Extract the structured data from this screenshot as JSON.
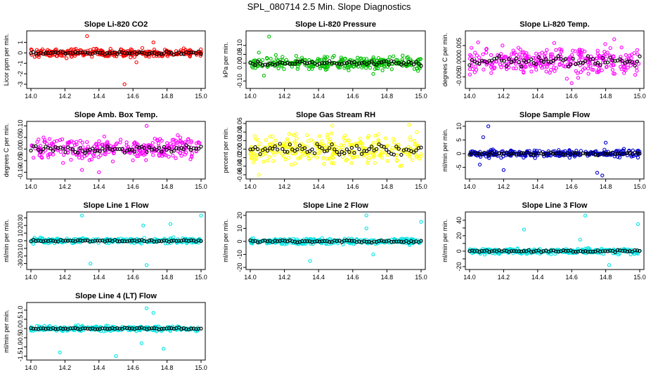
{
  "title": "SPL_080714  2.5 Min. Slope Diagnostics",
  "chart_data": [
    {
      "type": "scatter",
      "title": "Slope Li-820 CO2",
      "ylabel": "Licor ppm per min.",
      "color": "#ff0000",
      "xlim": [
        14.0,
        15.0
      ],
      "ylim": [
        -3.2,
        1.9
      ],
      "xticks": [
        14.0,
        14.2,
        14.4,
        14.6,
        14.8,
        15.0
      ],
      "yticks": [
        -3,
        -2,
        -1,
        0,
        1
      ],
      "ytick_labels": [
        "-3",
        "-2",
        "-1",
        "0",
        "1"
      ],
      "spread": 0.35,
      "outliers": [
        [
          14.33,
          1.6
        ],
        [
          14.55,
          -3.0
        ],
        [
          14.62,
          -0.9
        ],
        [
          14.72,
          1.0
        ]
      ]
    },
    {
      "type": "scatter",
      "title": "Slope Li-820 Pressure",
      "ylabel": "kPa per min.",
      "color": "#00c000",
      "xlim": [
        14.0,
        15.0
      ],
      "ylim": [
        -0.13,
        0.17
      ],
      "xticks": [
        14.0,
        14.2,
        14.4,
        14.6,
        14.8,
        15.0
      ],
      "yticks": [
        -0.1,
        0.0,
        0.05,
        0.1
      ],
      "ytick_labels": [
        "-0.10",
        "0.00",
        "0.05",
        "0.10"
      ],
      "spread": 0.03,
      "outliers": [
        [
          14.11,
          0.15
        ],
        [
          14.08,
          -0.07
        ],
        [
          14.72,
          -0.06
        ],
        [
          14.05,
          0.06
        ]
      ]
    },
    {
      "type": "scatter",
      "title": "Slope Li-820 Temp.",
      "ylabel": "degrees C per min.",
      "color": "#ff00ff",
      "xlim": [
        14.0,
        15.0
      ],
      "ylim": [
        -0.008,
        0.009
      ],
      "xticks": [
        14.0,
        14.2,
        14.4,
        14.6,
        14.8,
        15.0
      ],
      "yticks": [
        -0.005,
        0.0,
        0.005
      ],
      "ytick_labels": [
        "-0.005",
        "0.000",
        "0.005"
      ],
      "spread": 0.004,
      "outliers": [
        [
          14.05,
          0.006
        ],
        [
          14.6,
          -0.007
        ],
        [
          14.85,
          0.007
        ]
      ]
    },
    {
      "type": "scatter",
      "title": "Slope Amb. Box Temp.",
      "ylabel": "degrees C per min.",
      "color": "#ff00ff",
      "xlim": [
        14.0,
        15.0
      ],
      "ylim": [
        -0.12,
        0.11
      ],
      "xticks": [
        14.0,
        14.2,
        14.4,
        14.6,
        14.8,
        15.0
      ],
      "yticks": [
        -0.1,
        -0.05,
        0.0,
        0.05,
        0.1
      ],
      "ytick_labels": [
        "-0.10",
        "-0.05",
        "0.00",
        "0.05",
        "0.10"
      ],
      "spread": 0.04,
      "outliers": [
        [
          14.4,
          -0.1
        ],
        [
          14.68,
          0.1
        ],
        [
          14.3,
          -0.09
        ]
      ]
    },
    {
      "type": "scatter",
      "title": "Slope Gas Stream RH",
      "ylabel": "percent per min.",
      "color": "#ffff00",
      "xlim": [
        14.0,
        15.0
      ],
      "ylim": [
        -0.065,
        0.06
      ],
      "xticks": [
        14.0,
        14.2,
        14.4,
        14.6,
        14.8,
        15.0
      ],
      "yticks": [
        -0.06,
        -0.04,
        -0.02,
        0.0,
        0.02,
        0.04,
        0.06
      ],
      "ytick_labels": [
        "-0.06",
        "-0.04",
        "-0.02",
        "0.00",
        "0.02",
        "0.04",
        "0.06"
      ],
      "spread": 0.03,
      "outliers": [
        [
          14.48,
          0.055
        ],
        [
          14.93,
          0.057
        ],
        [
          14.05,
          -0.06
        ]
      ]
    },
    {
      "type": "scatter",
      "title": "Slope Sample Flow",
      "ylabel": "ml/min per min.",
      "color": "#0000cc",
      "xlim": [
        14.0,
        15.0
      ],
      "ylim": [
        -8.5,
        11
      ],
      "xticks": [
        14.0,
        14.2,
        14.4,
        14.6,
        14.8,
        15.0
      ],
      "yticks": [
        -5,
        0,
        5,
        10
      ],
      "ytick_labels": [
        "-5",
        "0",
        "5",
        "10"
      ],
      "spread": 1.2,
      "outliers": [
        [
          14.11,
          10
        ],
        [
          14.08,
          6
        ],
        [
          14.2,
          -6
        ],
        [
          14.75,
          -7
        ],
        [
          14.78,
          -8
        ],
        [
          14.06,
          -4
        ],
        [
          14.8,
          4
        ]
      ]
    },
    {
      "type": "scatter",
      "title": "Slope Line 1 Flow",
      "ylabel": "ml/min per min.",
      "color": "#00e5e5",
      "xlim": [
        14.0,
        15.0
      ],
      "ylim": [
        -35,
        35
      ],
      "xticks": [
        14.0,
        14.2,
        14.4,
        14.6,
        14.8,
        15.0
      ],
      "yticks": [
        -30,
        -20,
        -10,
        0,
        10,
        20,
        30
      ],
      "ytick_labels": [
        "-30",
        "-20",
        "-10",
        "0",
        "10",
        "20",
        "30"
      ],
      "spread": 3,
      "outliers": [
        [
          14.3,
          33
        ],
        [
          14.35,
          -30
        ],
        [
          14.68,
          -32
        ],
        [
          14.82,
          22
        ],
        [
          15.0,
          33
        ],
        [
          14.66,
          20
        ]
      ]
    },
    {
      "type": "scatter",
      "title": "Slope Line 2 Flow",
      "ylabel": "ml/min per min.",
      "color": "#00e5e5",
      "xlim": [
        14.0,
        15.0
      ],
      "ylim": [
        -20,
        21
      ],
      "xticks": [
        14.0,
        14.2,
        14.4,
        14.6,
        14.8,
        15.0
      ],
      "yticks": [
        -20,
        -10,
        0,
        10,
        20
      ],
      "ytick_labels": [
        "-20",
        "-10",
        "0",
        "10",
        "20"
      ],
      "spread": 2,
      "outliers": [
        [
          14.68,
          20
        ],
        [
          14.35,
          -15
        ],
        [
          15.0,
          15
        ],
        [
          14.68,
          10
        ],
        [
          14.72,
          -10
        ]
      ]
    },
    {
      "type": "scatter",
      "title": "Slope Line 3 Flow",
      "ylabel": "ml/min per min.",
      "color": "#00e5e5",
      "xlim": [
        14.0,
        15.0
      ],
      "ylim": [
        -21,
        48
      ],
      "xticks": [
        14.0,
        14.2,
        14.4,
        14.6,
        14.8,
        15.0
      ],
      "yticks": [
        -20,
        -10,
        0,
        10,
        20,
        30,
        40
      ],
      "ytick_labels": [
        "-20",
        "",
        "0",
        "",
        "20",
        "",
        "40"
      ],
      "spread": 3,
      "outliers": [
        [
          14.32,
          28
        ],
        [
          14.68,
          46
        ],
        [
          14.99,
          35
        ],
        [
          14.82,
          -18
        ],
        [
          14.65,
          15
        ]
      ]
    },
    {
      "type": "scatter",
      "title": "Slope Line 4 (LT) Flow",
      "ylabel": "ml/min per min.",
      "color": "#00e5e5",
      "xlim": [
        14.0,
        15.0
      ],
      "ylim": [
        -1.6,
        1.3
      ],
      "xticks": [
        14.0,
        14.2,
        14.4,
        14.6,
        14.8,
        15.0
      ],
      "yticks": [
        -1.5,
        -1.0,
        -0.5,
        0.0,
        0.5,
        1.0
      ],
      "ytick_labels": [
        "-1.5",
        "-1.0",
        "-0.5",
        "0.0",
        "0.5",
        "1.0"
      ],
      "spread": 0.12,
      "outliers": [
        [
          14.68,
          1.1
        ],
        [
          14.5,
          -1.5
        ],
        [
          14.17,
          -1.3
        ],
        [
          14.78,
          -1.1
        ],
        [
          14.65,
          -0.8
        ],
        [
          14.72,
          0.85
        ]
      ]
    }
  ]
}
